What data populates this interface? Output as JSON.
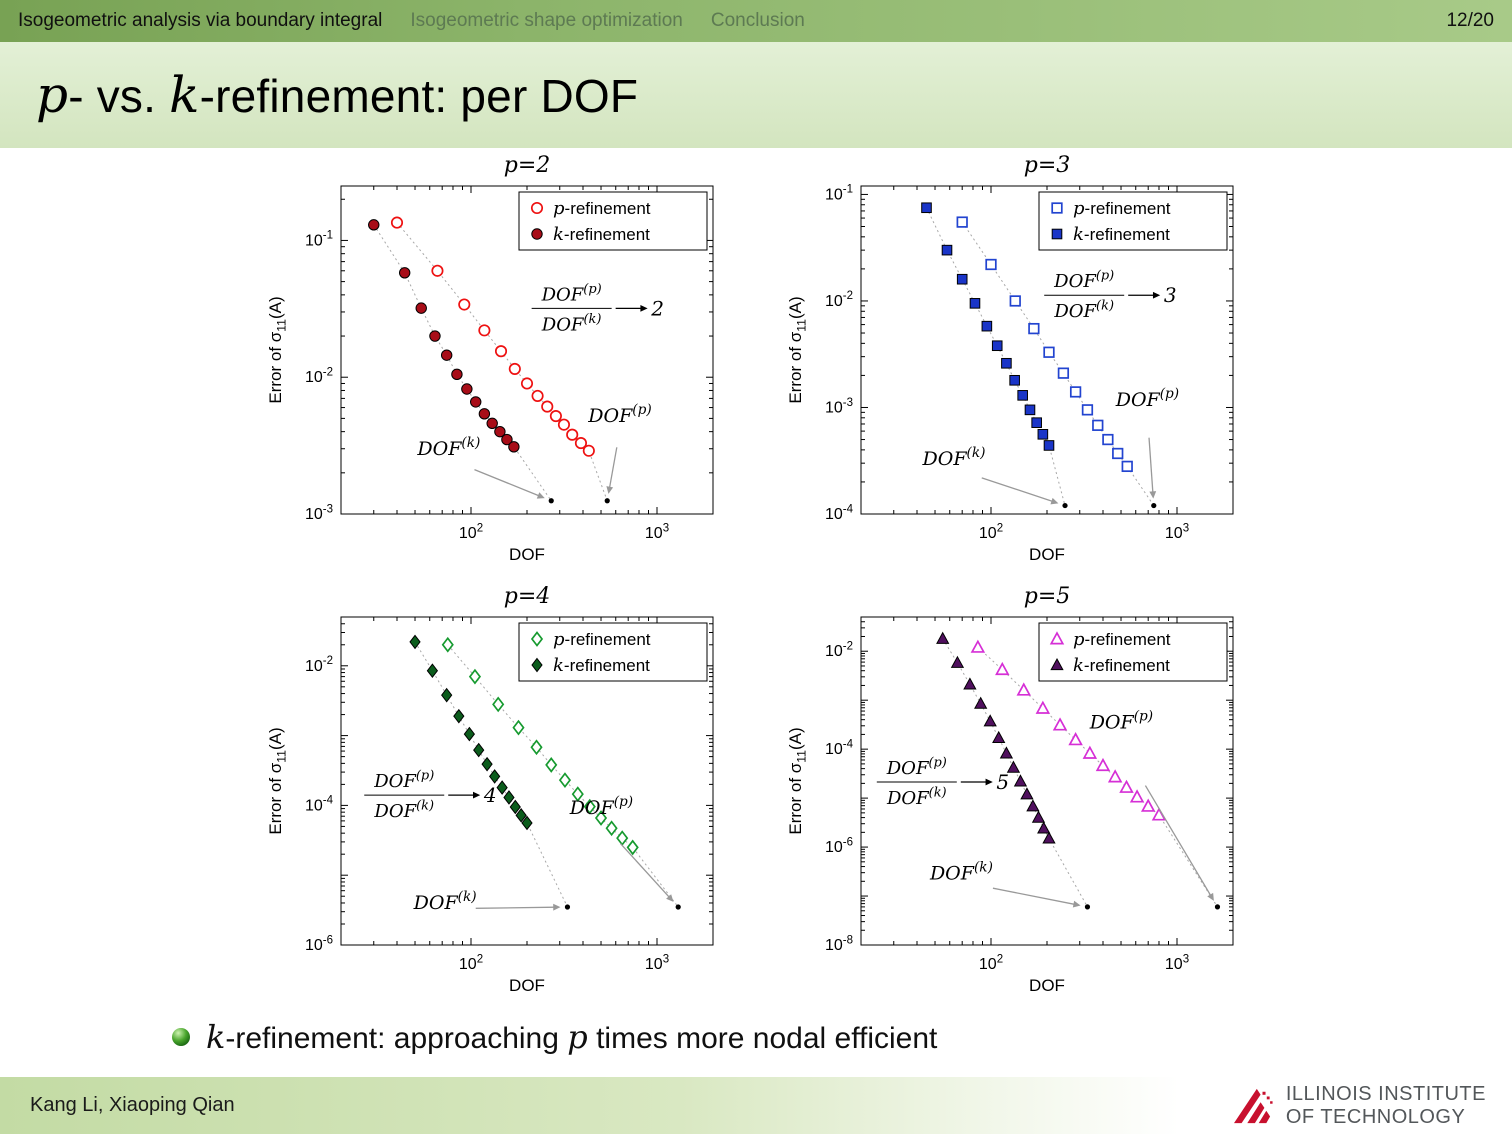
{
  "header": {
    "sections": [
      {
        "label": "Isogeometric analysis via boundary integral",
        "active": true
      },
      {
        "label": "Isogeometric shape optimization",
        "active": false
      },
      {
        "label": "Conclusion",
        "active": false
      }
    ],
    "page": "12/20"
  },
  "title": {
    "p": "p",
    "sep": "- vs. ",
    "k": "k",
    "rest": "-refinement: per DOF"
  },
  "bullet": {
    "k": "k",
    "mid": "-refinement: approaching ",
    "p": "p",
    "rest": " times more nodal efficient"
  },
  "footer": {
    "authors": "Kang Li, Xiaoping Qian",
    "logo_line1": "ILLINOIS INSTITUTE",
    "logo_line2": "OF TECHNOLOGY",
    "logo_color": "#c8102e"
  },
  "chart_data": [
    {
      "type": "scatter",
      "title": "p=2",
      "xlabel": "DOF",
      "ylabel": {
        "prefix": "Error of σ",
        "sub": "11",
        "suffix": "(A)"
      },
      "xlim": [
        20,
        2000
      ],
      "ylim": [
        0.001,
        0.25
      ],
      "xticks_exp": [
        2,
        3
      ],
      "yticks_exp": [
        -1,
        -2,
        -3
      ],
      "grid": false,
      "legend_position": "top-right-inside",
      "marker": "circle",
      "colors": {
        "open": "#ee1111",
        "fill": "#a80d18"
      },
      "legend": [
        {
          "sym": "p",
          "text": "-refinement"
        },
        {
          "sym": "k",
          "text": "-refinement"
        }
      ],
      "series": [
        {
          "name": "p-refinement",
          "style": "open",
          "x": [
            40,
            66,
            92,
            118,
            145,
            172,
            200,
            228,
            257,
            286,
            316,
            350,
            390,
            430
          ],
          "y": [
            0.135,
            0.06,
            0.034,
            0.022,
            0.0155,
            0.0115,
            0.009,
            0.0073,
            0.0061,
            0.0052,
            0.0045,
            0.0038,
            0.0033,
            0.0029
          ]
        },
        {
          "name": "k-refinement",
          "style": "filled",
          "x": [
            30,
            44,
            54,
            64,
            74,
            84,
            95,
            106,
            118,
            130,
            143,
            156,
            170
          ],
          "y": [
            0.13,
            0.058,
            0.032,
            0.02,
            0.0145,
            0.0105,
            0.0082,
            0.0066,
            0.0054,
            0.0046,
            0.004,
            0.0035,
            0.0031
          ]
        }
      ],
      "end_points": {
        "k": [
          270,
          0.00125
        ],
        "p": [
          540,
          0.00125
        ]
      },
      "annotation": {
        "dof": "DOF",
        "sup_p": "(p)",
        "sup_k": "(k)",
        "ratio": "2"
      },
      "layout": {
        "frac": [
          0.62,
          0.37
        ],
        "k_label": [
          0.29,
          0.82
        ],
        "p_label": [
          0.75,
          0.72
        ]
      }
    },
    {
      "type": "scatter",
      "title": "p=3",
      "xlabel": "DOF",
      "ylabel": {
        "prefix": "Error of σ",
        "sub": "11",
        "suffix": "(A)"
      },
      "xlim": [
        20,
        2000
      ],
      "ylim": [
        0.0001,
        0.12
      ],
      "xticks_exp": [
        2,
        3
      ],
      "yticks_exp": [
        -1,
        -2,
        -3,
        -4
      ],
      "grid": false,
      "legend_position": "top-right-inside",
      "marker": "square",
      "colors": {
        "open": "#2244d0",
        "fill": "#1a35c8"
      },
      "legend": [
        {
          "sym": "p",
          "text": "-refinement"
        },
        {
          "sym": "k",
          "text": "-refinement"
        }
      ],
      "series": [
        {
          "name": "p-refinement",
          "style": "open",
          "x": [
            70,
            100,
            135,
            170,
            205,
            245,
            285,
            330,
            375,
            425,
            480,
            540
          ],
          "y": [
            0.055,
            0.022,
            0.01,
            0.0055,
            0.0033,
            0.0021,
            0.0014,
            0.00095,
            0.00068,
            0.0005,
            0.00037,
            0.00028
          ]
        },
        {
          "name": "k-refinement",
          "style": "filled",
          "x": [
            45,
            58,
            70,
            82,
            95,
            108,
            121,
            134,
            148,
            162,
            176,
            190,
            205
          ],
          "y": [
            0.075,
            0.03,
            0.016,
            0.0095,
            0.0058,
            0.0038,
            0.0026,
            0.0018,
            0.0013,
            0.00095,
            0.00072,
            0.00056,
            0.00044
          ]
        }
      ],
      "end_points": {
        "k": [
          250,
          0.00012
        ],
        "p": [
          750,
          0.00012
        ]
      },
      "annotation": {
        "dof": "DOF",
        "sup_p": "(p)",
        "sup_k": "(k)",
        "ratio": "3"
      },
      "layout": {
        "frac": [
          0.6,
          0.33
        ],
        "k_label": [
          0.25,
          0.85
        ],
        "p_label": [
          0.77,
          0.67
        ]
      }
    },
    {
      "type": "scatter",
      "title": "p=4",
      "xlabel": "DOF",
      "ylabel": {
        "prefix": "Error of σ",
        "sub": "11",
        "suffix": "(A)"
      },
      "xlim": [
        20,
        2000
      ],
      "ylim": [
        1e-06,
        0.05
      ],
      "xticks_exp": [
        2,
        3
      ],
      "yticks_exp": [
        -2,
        -4,
        -6
      ],
      "grid": false,
      "legend_position": "top-right-inside",
      "marker": "diamond",
      "colors": {
        "open": "#169a2f",
        "fill": "#0b5c1c"
      },
      "legend": [
        {
          "sym": "p",
          "text": "-refinement"
        },
        {
          "sym": "k",
          "text": "-refinement"
        }
      ],
      "series": [
        {
          "name": "p-refinement",
          "style": "open",
          "x": [
            75,
            105,
            140,
            180,
            225,
            270,
            320,
            375,
            435,
            500,
            570,
            650,
            740
          ],
          "y": [
            0.02,
            0.007,
            0.0028,
            0.0013,
            0.00068,
            0.00038,
            0.00023,
            0.000145,
            9.6e-05,
            6.6e-05,
            4.7e-05,
            3.4e-05,
            2.5e-05
          ]
        },
        {
          "name": "k-refinement",
          "style": "filled",
          "x": [
            50,
            62,
            74,
            86,
            98,
            110,
            122,
            134,
            147,
            160,
            173,
            186,
            200
          ],
          "y": [
            0.022,
            0.0085,
            0.0038,
            0.0019,
            0.00105,
            0.00062,
            0.00039,
            0.00026,
            0.00018,
            0.00013,
            9.5e-05,
            7.2e-05,
            5.6e-05
          ]
        }
      ],
      "end_points": {
        "k": [
          330,
          3.5e-06
        ],
        "p": [
          1300,
          3.5e-06
        ]
      },
      "annotation": {
        "dof": "DOF",
        "sup_p": "(p)",
        "sup_k": "(k)",
        "ratio": "4"
      },
      "layout": {
        "frac": [
          0.17,
          0.54
        ],
        "k_label": [
          0.28,
          0.89
        ],
        "p_label": [
          0.7,
          0.6
        ]
      }
    },
    {
      "type": "scatter",
      "title": "p=5",
      "xlabel": "DOF",
      "ylabel": {
        "prefix": "Error of σ",
        "sub": "11",
        "suffix": "(A)"
      },
      "xlim": [
        20,
        2000
      ],
      "ylim": [
        1e-08,
        0.05
      ],
      "xticks_exp": [
        2,
        3
      ],
      "yticks_exp": [
        -2,
        -4,
        -6,
        -8
      ],
      "grid": false,
      "legend_position": "top-right-inside",
      "marker": "triangle",
      "colors": {
        "open": "#d62fd6",
        "fill": "#50105e"
      },
      "legend": [
        {
          "sym": "p",
          "text": "-refinement"
        },
        {
          "sym": "k",
          "text": "-refinement"
        }
      ],
      "series": [
        {
          "name": "p-refinement",
          "style": "open",
          "x": [
            85,
            115,
            150,
            190,
            235,
            285,
            340,
            400,
            465,
            535,
            610,
            700,
            800
          ],
          "y": [
            0.012,
            0.0042,
            0.0016,
            0.00068,
            0.00031,
            0.000155,
            8.2e-05,
            4.6e-05,
            2.7e-05,
            1.65e-05,
            1.05e-05,
            6.8e-06,
            4.5e-06
          ]
        },
        {
          "name": "k-refinement",
          "style": "filled",
          "x": [
            55,
            66,
            77,
            88,
            99,
            110,
            121,
            132,
            144,
            156,
            168,
            180,
            192,
            205
          ],
          "y": [
            0.018,
            0.0058,
            0.0021,
            0.00085,
            0.00037,
            0.00017,
            8.2e-05,
            4.2e-05,
            2.2e-05,
            1.2e-05,
            6.8e-06,
            4e-06,
            2.4e-06,
            1.5e-06
          ]
        }
      ],
      "end_points": {
        "k": [
          330,
          6e-08
        ],
        "p": [
          1650,
          6e-08
        ]
      },
      "annotation": {
        "dof": "DOF",
        "sup_p": "(p)",
        "sup_k": "(k)",
        "ratio": "5"
      },
      "layout": {
        "frac": [
          0.15,
          0.5
        ],
        "k_label": [
          0.27,
          0.8
        ],
        "p_label": [
          0.7,
          0.34
        ]
      }
    }
  ]
}
